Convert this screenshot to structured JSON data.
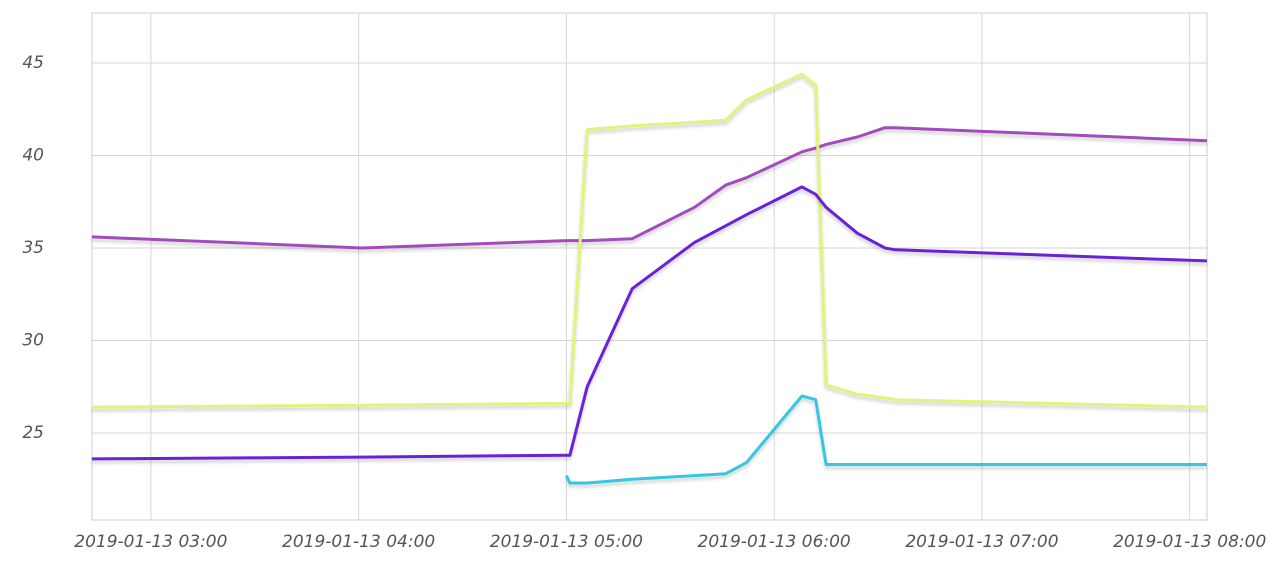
{
  "chart_data": {
    "type": "line",
    "x": [
      "2019-01-13 02:43",
      "2019-01-13 04:01",
      "2019-01-13 05:00",
      "2019-01-13 05:01",
      "2019-01-13 05:06",
      "2019-01-13 05:19",
      "2019-01-13 05:37",
      "2019-01-13 05:46",
      "2019-01-13 05:52",
      "2019-01-13 06:08",
      "2019-01-13 06:12",
      "2019-01-13 06:15",
      "2019-01-13 06:24",
      "2019-01-13 06:32",
      "2019-01-13 06:35",
      "2019-01-13 08:05"
    ],
    "series": [
      {
        "color": "#a24cbc",
        "values": [
          35.6,
          35.0,
          35.4,
          35.4,
          35.4,
          35.5,
          37.2,
          38.4,
          38.8,
          40.2,
          40.4,
          40.6,
          41.0,
          41.5,
          41.5,
          40.8
        ]
      },
      {
        "color": "#e2f27c",
        "values": [
          26.4,
          26.5,
          26.6,
          26.6,
          41.4,
          41.6,
          41.8,
          41.9,
          43.0,
          44.4,
          43.8,
          27.6,
          27.1,
          26.9,
          26.8,
          26.4
        ]
      },
      {
        "color": "#6a22d8",
        "values": [
          23.6,
          23.7,
          23.8,
          23.8,
          27.5,
          32.8,
          35.3,
          36.2,
          36.8,
          38.3,
          37.9,
          37.2,
          35.8,
          35.0,
          34.9,
          34.3
        ]
      },
      {
        "color": "#32c8e2",
        "values": [
          null,
          null,
          22.7,
          22.3,
          22.3,
          22.5,
          22.7,
          22.8,
          23.4,
          27.0,
          26.8,
          23.3,
          23.3,
          23.3,
          23.3,
          23.3
        ]
      }
    ],
    "xlim": [
      "2019-01-13 02:43",
      "2019-01-13 08:05"
    ],
    "xticks": [
      "2019-01-13 03:00",
      "2019-01-13 04:00",
      "2019-01-13 05:00",
      "2019-01-13 06:00",
      "2019-01-13 07:00",
      "2019-01-13 08:00"
    ],
    "ylim": [
      20.3,
      47.7
    ],
    "yticks": [
      25,
      30,
      35,
      40,
      45
    ],
    "grid": true
  }
}
